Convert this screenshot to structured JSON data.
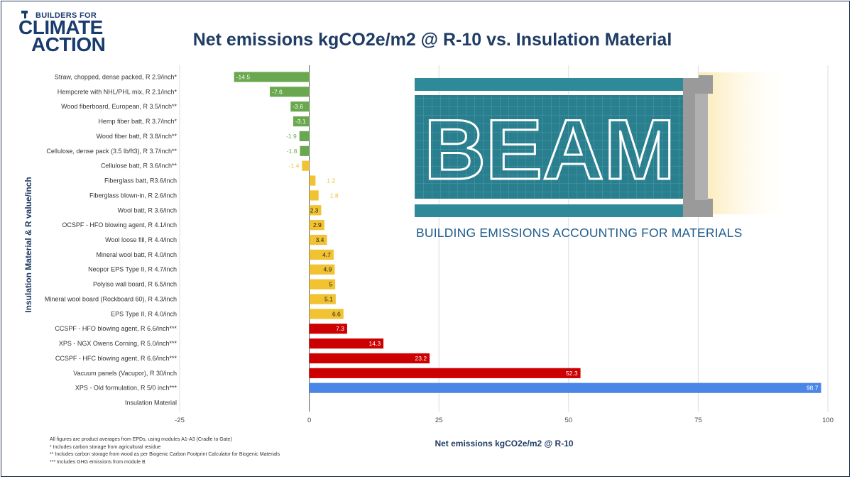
{
  "logo": {
    "top": "BUILDERS FOR",
    "mid": "CLIMATE",
    "bot": "ACTION"
  },
  "title": "Net emissions kgCO2e/m2 @ R-10 vs. Insulation Material",
  "beam": {
    "word": "BEAM",
    "caption": "BUILDING EMISSIONS ACCOUNTING FOR MATERIALS"
  },
  "colors": {
    "green": "#6aa84f",
    "yellow": "#f1c232",
    "red": "#cc0000",
    "blue": "#4a86e8",
    "navy": "#1f3c64",
    "teal": "#2e8a99"
  },
  "chart_data": {
    "type": "bar",
    "orientation": "horizontal",
    "ylabel": "Insulation Material & R value/inch",
    "xlabel": "Net emissions kgCO2e/m2 @ R-10",
    "xlim": [
      -25,
      100
    ],
    "xticks": [
      -25,
      0,
      25,
      50,
      75,
      100
    ],
    "grid": true,
    "categories": [
      "Straw, chopped, dense packed, R 2.9/inch*",
      "Hempcrete with NHL/PHL mix, R 2.1/inch*",
      "Wood fiberboard, European, R 3.5/inch**",
      "Hemp fiber batt, R 3.7/inch*",
      "Wood fiber batt, R 3.8/inch**",
      "Cellulose, dense pack (3.5 lb/ft3), R 3.7/inch**",
      "Cellulose batt, R 3.6/inch**",
      "Fiberglass batt, R3.6/inch",
      "Fiberglass blown-in, R 2.6/inch",
      "Wool batt, R 3.6/inch",
      "OCSPF - HFO blowing agent, R 4.1/inch",
      "Wool loose fill, R 4.4/inch",
      "Mineral wool batt, R 4.0/inch",
      "Neopor EPS Type II, R 4.7/inch",
      "Polyiso wall board, R 6.5/inch",
      "Mineral wool board (Rockboard 60), R 4.3/inch",
      "EPS Type II, R 4.0/inch",
      "CCSPF - HFO blowing agent, R 6.6/inch***",
      "XPS - NGX Owens Corning, R 5.0/inch***",
      "CCSPF - HFC blowing agent, R 6.6/inch***",
      "Vacuum panels (Vacupor), R 30/inch",
      "XPS - Old formulation, R 5/0 inch***",
      "Insulation Material"
    ],
    "values": [
      -14.5,
      -7.6,
      -3.6,
      -3.1,
      -1.9,
      -1.8,
      -1.4,
      1.2,
      1.8,
      2.3,
      2.9,
      3.4,
      4.7,
      4.9,
      5,
      5.1,
      6.6,
      7.3,
      14.3,
      23.2,
      52.3,
      98.7,
      null
    ],
    "value_labels": [
      "-14.5",
      "-7.6",
      "-3.6",
      "-3.1",
      "-1.9",
      "-1.8",
      "-1.4",
      "1.2",
      "1.8",
      "2.3",
      "2.9",
      "3.4",
      "4.7",
      "4.9",
      "5",
      "5.1",
      "6.6",
      "7.3",
      "14.3",
      "23.2",
      "52.3",
      "98.7",
      ""
    ],
    "bar_colors": [
      "green",
      "green",
      "green",
      "green",
      "green",
      "green",
      "yellow",
      "yellow",
      "yellow",
      "yellow",
      "yellow",
      "yellow",
      "yellow",
      "yellow",
      "yellow",
      "yellow",
      "yellow",
      "red",
      "red",
      "red",
      "red",
      "blue",
      null
    ],
    "label_inside": [
      true,
      true,
      true,
      true,
      false,
      false,
      false,
      false,
      false,
      true,
      true,
      true,
      true,
      true,
      true,
      true,
      true,
      true,
      true,
      true,
      true,
      true,
      false
    ]
  },
  "footnotes": [
    "All figures are product averages from EPDs, using modules A1-A3 (Cradle to Gate)",
    "* Includes carbon storage from agricultural residue",
    "** Includes carbon storage from wood as per Biogenic Carbon Footprint Calculator for Biogenic Materials",
    "*** Includes GHG emissions from module B"
  ]
}
